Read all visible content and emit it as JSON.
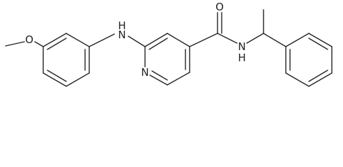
{
  "atoms": {
    "methoxy_oxygen": "O",
    "amine_h": "H",
    "amine_n": "N",
    "pyridine_n": "N",
    "carbonyl_oxygen": "O",
    "amide_n": "N",
    "amide_h": "H"
  }
}
